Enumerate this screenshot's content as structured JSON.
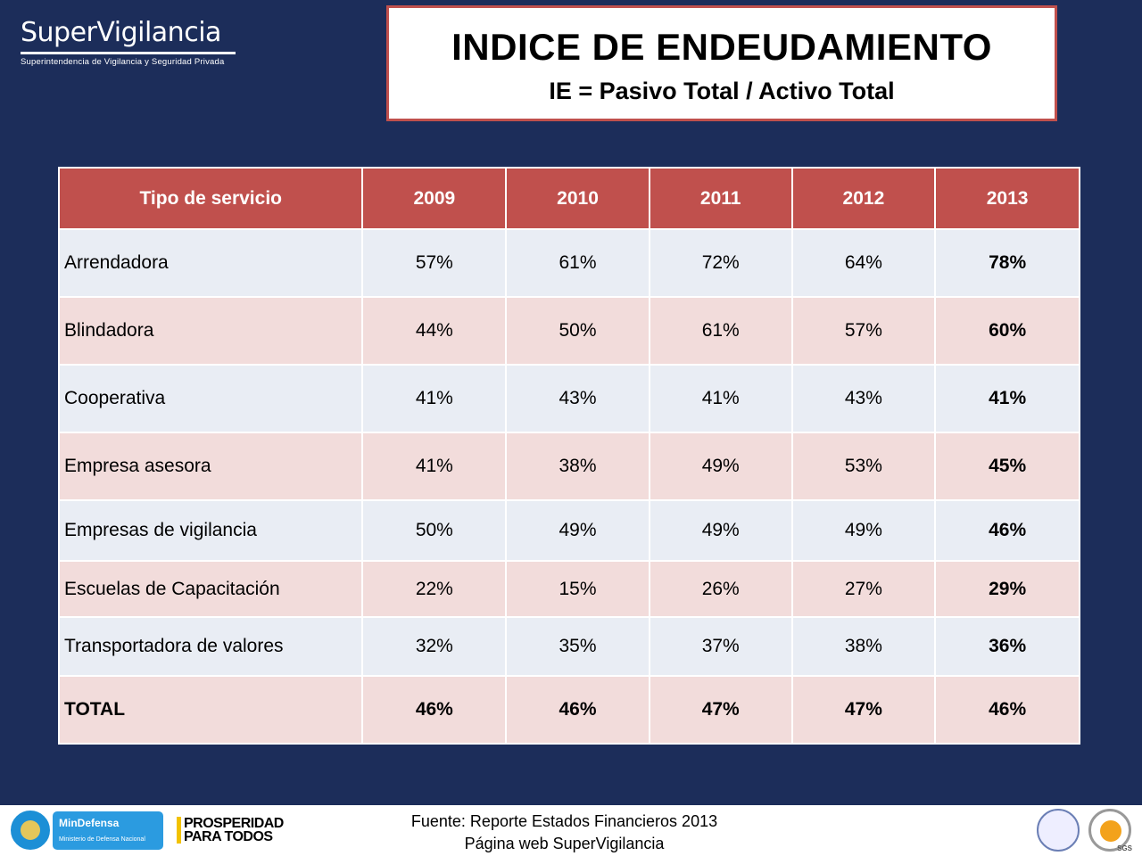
{
  "logo": {
    "name": "SuperVigilancia",
    "subtitle": "Superintendencia de Vigilancia y Seguridad Privada"
  },
  "title": "INDICE DE  ENDEUDAMIENTO",
  "formula": "IE = Pasivo Total / Activo Total",
  "table": {
    "headers": [
      "Tipo de servicio",
      "2009",
      "2010",
      "2011",
      "2012",
      "2013"
    ],
    "rows": [
      [
        "Arrendadora",
        "57%",
        "61%",
        "72%",
        "64%",
        "78%"
      ],
      [
        "Blindadora",
        "44%",
        "50%",
        "61%",
        "57%",
        "60%"
      ],
      [
        "Cooperativa",
        "41%",
        "43%",
        "41%",
        "43%",
        "41%"
      ],
      [
        "Empresa asesora",
        "41%",
        "38%",
        "49%",
        "53%",
        "45%"
      ],
      [
        "Empresas de vigilancia",
        "50%",
        "49%",
        "49%",
        "49%",
        "46%"
      ],
      [
        "Escuelas de Capacitación",
        "22%",
        "15%",
        "26%",
        "27%",
        "29%"
      ],
      [
        "Transportadora de valores",
        "32%",
        "35%",
        "37%",
        "38%",
        "36%"
      ],
      [
        "TOTAL",
        "46%",
        "46%",
        "47%",
        "47%",
        "46%"
      ]
    ]
  },
  "footer": {
    "source": "Fuente: Reporte Estados Financieros 2013",
    "web": "Página web SuperVigilancia",
    "mindefensa": "MinDefensa",
    "mindefensa_sub": "Ministerio de Defensa Nacional",
    "prosperidad1": "PROSPERIDAD",
    "prosperidad2": "PARA TODOS",
    "sgs": "SGS"
  },
  "colors": {
    "background": "#1c2d5a",
    "header": "#c0504d",
    "row_odd": "#e9edf4",
    "row_even": "#f2dcdb"
  }
}
